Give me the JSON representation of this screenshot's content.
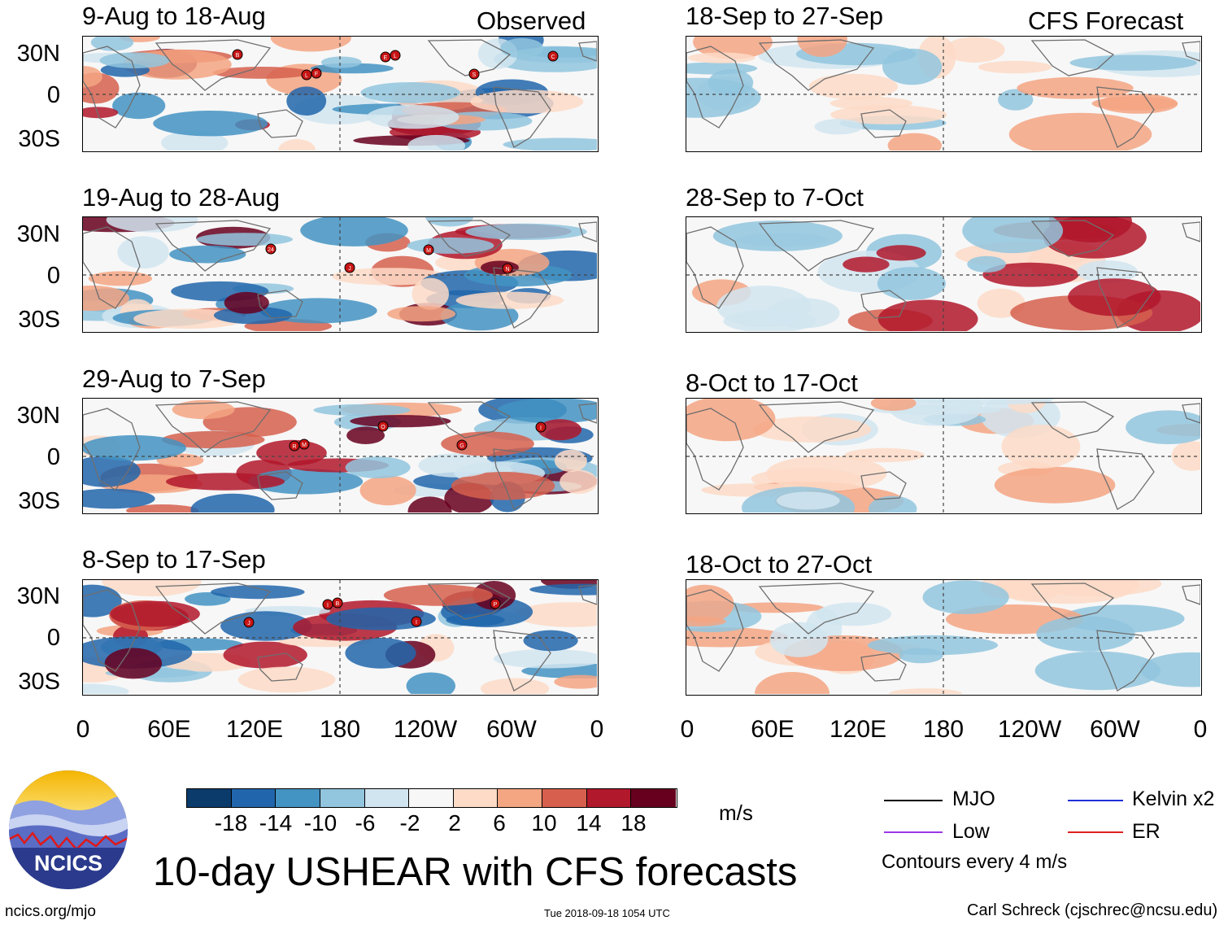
{
  "main_title": "10-day USHEAR with CFS forecasts",
  "observed_label": "Observed",
  "forecast_label": "CFS Forecast",
  "observed_panels": [
    {
      "title": "9-Aug to 18-Aug",
      "storms": [
        "B",
        "F",
        "L",
        "S",
        "C",
        "L",
        "E"
      ]
    },
    {
      "title": "19-Aug to 28-Aug",
      "storms": [
        "24",
        "J",
        "M",
        "N"
      ]
    },
    {
      "title": "29-Aug to 7-Sep",
      "storms": [
        "M",
        "O",
        "G",
        "I",
        "R"
      ]
    },
    {
      "title": "8-Sep to 17-Sep",
      "storms": [
        "B",
        "I",
        "P",
        "J",
        "I"
      ]
    }
  ],
  "forecast_panels": [
    {
      "title": "18-Sep to 27-Sep"
    },
    {
      "title": "28-Sep to 7-Oct"
    },
    {
      "title": "8-Oct to 17-Oct"
    },
    {
      "title": "18-Oct to 27-Oct"
    }
  ],
  "y_ticks": [
    "30N",
    "0",
    "30S"
  ],
  "x_ticks": [
    "0",
    "60E",
    "120E",
    "180",
    "120W",
    "60W",
    "0"
  ],
  "colorbar": {
    "ticks": [
      "-18",
      "-14",
      "-10",
      "-6",
      "-2",
      "2",
      "6",
      "10",
      "14",
      "18"
    ],
    "colors": [
      "#0b3b6b",
      "#2166ac",
      "#4393c3",
      "#92c5de",
      "#d1e5f0",
      "#f7f7f7",
      "#fddbc7",
      "#f4a582",
      "#d6604d",
      "#b2182b",
      "#67001f"
    ],
    "units": "m/s"
  },
  "legend": {
    "items": [
      {
        "label": "MJO",
        "color": "#000000"
      },
      {
        "label": "Kelvin x2",
        "color": "#1f2fd6"
      },
      {
        "label": "Low",
        "color": "#9b38e8"
      },
      {
        "label": "ER",
        "color": "#e02020"
      }
    ],
    "note": "Contours every 4 m/s"
  },
  "logo_text": "NCICS",
  "footer": {
    "left": "ncics.org/mjo",
    "center": "Tue 2018-09-18 1054 UTC",
    "right": "Carl Schreck (cjschrec@ncsu.edu)"
  }
}
